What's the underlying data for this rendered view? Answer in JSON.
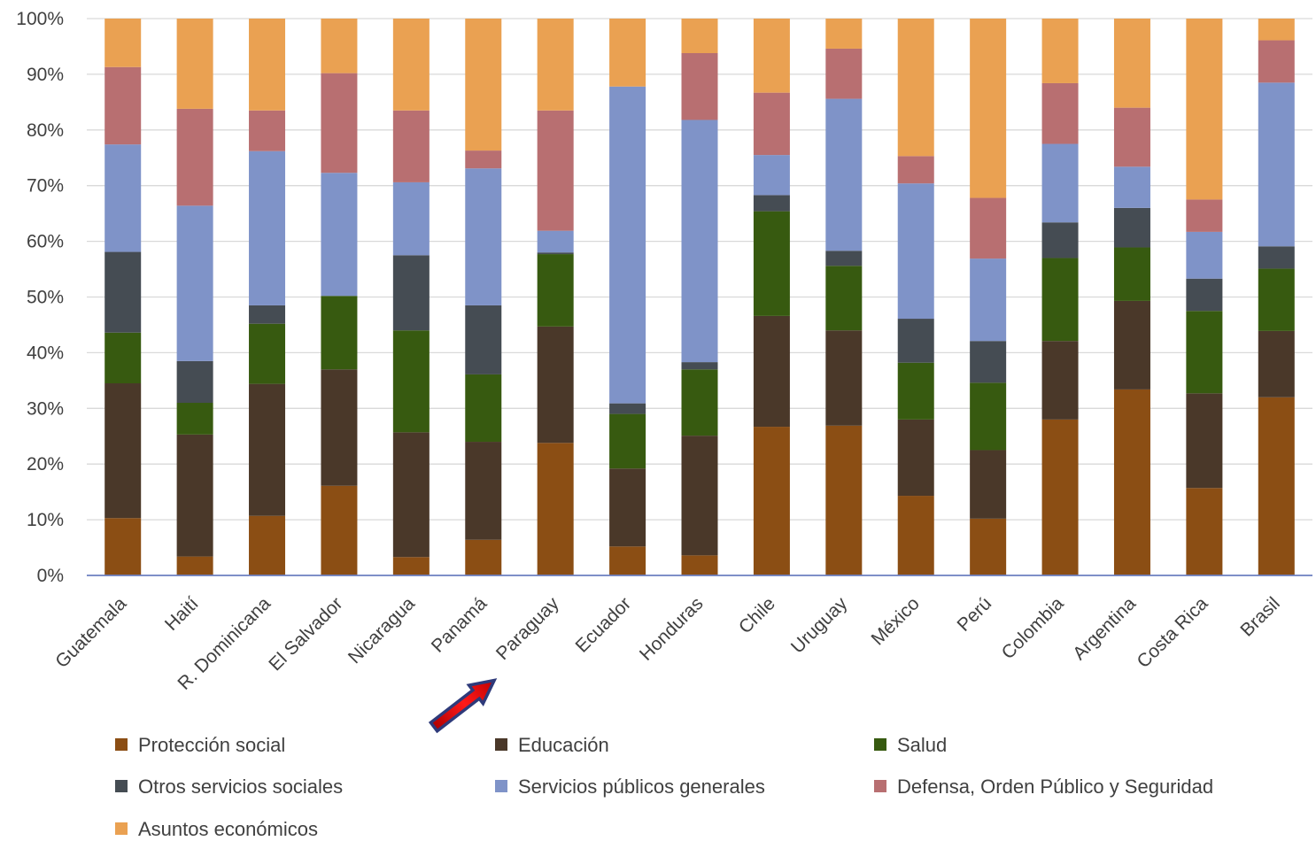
{
  "chart_data": {
    "type": "bar",
    "stacked": true,
    "percent": true,
    "categories": [
      "Guatemala",
      "Haití",
      "R. Dominicana",
      "El Salvador",
      "Nicaragua",
      "Panamá",
      "Paraguay",
      "Ecuador",
      "Honduras",
      "Chile",
      "Uruguay",
      "México",
      "Perú",
      "Colombia",
      "Argentina",
      "Costa Rica",
      "Brasil"
    ],
    "series": [
      {
        "name": "Protección social",
        "color": "#8B4E14",
        "values": [
          10.3,
          3.4,
          10.7,
          16.1,
          3.3,
          6.4,
          23.8,
          5.2,
          3.6,
          26.7,
          26.9,
          14.3,
          10.2,
          28.0,
          33.4,
          15.7,
          32.0
        ]
      },
      {
        "name": "Educación",
        "color": "#4A3829",
        "values": [
          24.2,
          21.9,
          23.7,
          20.9,
          22.4,
          17.6,
          20.9,
          14.0,
          21.5,
          19.9,
          17.1,
          13.7,
          12.3,
          14.1,
          15.9,
          17.0,
          11.9
        ]
      },
      {
        "name": "Salud",
        "color": "#375A10",
        "values": [
          9.1,
          5.7,
          10.8,
          13.2,
          18.3,
          12.1,
          13.0,
          9.8,
          11.9,
          18.8,
          11.6,
          10.2,
          12.1,
          14.9,
          9.6,
          14.8,
          11.2
        ]
      },
      {
        "name": "Otros servicios sociales",
        "color": "#454C53",
        "values": [
          14.5,
          7.5,
          3.3,
          0.0,
          13.5,
          12.4,
          0.3,
          1.9,
          1.3,
          2.9,
          2.7,
          7.9,
          7.5,
          6.4,
          7.1,
          5.8,
          4.0
        ]
      },
      {
        "name": "Servicios públicos generales",
        "color": "#7F93C8",
        "values": [
          19.3,
          27.9,
          27.7,
          22.1,
          13.1,
          24.6,
          3.9,
          56.9,
          43.5,
          7.2,
          27.3,
          24.3,
          14.8,
          14.1,
          7.4,
          8.4,
          29.4
        ]
      },
      {
        "name": "Defensa, Orden Público y Seguridad",
        "color": "#B86F71",
        "values": [
          13.9,
          17.4,
          7.3,
          17.9,
          12.9,
          3.2,
          21.6,
          0.0,
          12.0,
          11.2,
          9.0,
          4.9,
          10.9,
          10.9,
          10.6,
          5.8,
          7.6
        ]
      },
      {
        "name": "Asuntos económicos",
        "color": "#EAA152",
        "values": [
          8.7,
          16.2,
          16.5,
          9.8,
          16.5,
          23.7,
          16.5,
          12.2,
          6.2,
          13.3,
          5.4,
          24.7,
          32.2,
          11.6,
          16.0,
          32.5,
          3.9
        ]
      }
    ],
    "yticks": [
      "0%",
      "10%",
      "20%",
      "30%",
      "40%",
      "50%",
      "60%",
      "70%",
      "80%",
      "90%",
      "100%"
    ],
    "ylim": [
      0,
      100
    ],
    "legend_position": "bottom",
    "annotation": "red-arrow pointing to Paraguay"
  }
}
